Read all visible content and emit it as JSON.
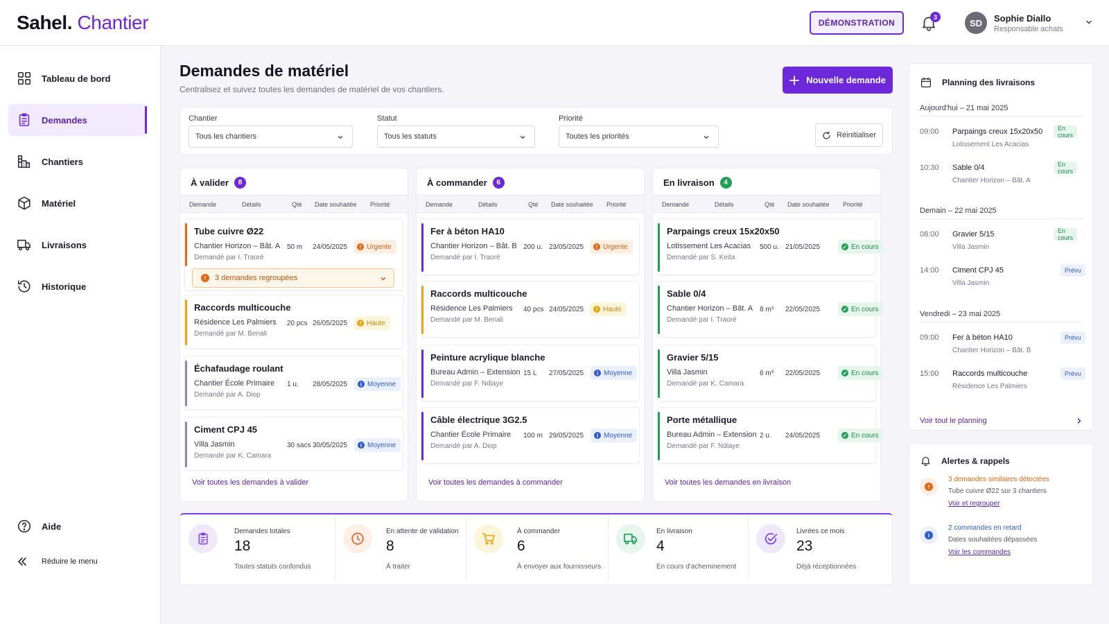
{
  "app": {
    "brand_main": "Sahel.",
    "brand_sub": "Chantier"
  },
  "topbar": {
    "demo_label": "DÉMONSTRATION",
    "notif_count": "3",
    "user_initials": "SD",
    "user_name": "Sophie Diallo",
    "user_role": "Responsable achats"
  },
  "sidebar": {
    "items": [
      {
        "label": "Tableau de bord",
        "icon": "grid-icon"
      },
      {
        "label": "Demandes",
        "icon": "clipboard-icon"
      },
      {
        "label": "Chantiers",
        "icon": "crane-icon"
      },
      {
        "label": "Matériel",
        "icon": "box-icon"
      },
      {
        "label": "Livraisons",
        "icon": "truck-icon"
      },
      {
        "label": "Historique",
        "icon": "history-icon"
      }
    ],
    "active": "Demandes",
    "help": "Aide",
    "collapse": "Réduire le menu"
  },
  "page": {
    "title": "Demandes de matériel",
    "subtitle": "Centralisez et suivez toutes les demandes de matériel de vos chantiers.",
    "new_button": "Nouvelle demande"
  },
  "filters": {
    "chantier": {
      "label": "Chantier",
      "value": "Tous les chantiers"
    },
    "statut": {
      "label": "Statut",
      "value": "Tous les statuts"
    },
    "priorite": {
      "label": "Priorité",
      "value": "Toutes les priorités"
    },
    "reset": "Réinitialiser"
  },
  "table_headers": {
    "demande": "Demande",
    "details": "Détails",
    "qte": "Qté",
    "date": "Date souhaitée",
    "priorite": "Priorité"
  },
  "columns": [
    {
      "title": "À valider",
      "count": "8",
      "count_color": "#6d28d9",
      "footer": "Voir toutes les demandes à valider",
      "cards": [
        {
          "title": "Tube cuivre Ø22",
          "site": "Chantier Horizon – Bât. A",
          "by": "Demandé par I. Traoré",
          "qty": "50 m",
          "date": "24/05/2025",
          "priority": "Urgente",
          "bar": "#e16a17"
        },
        {
          "title": "Raccords multicouche",
          "site": "Résidence Les Palmiers",
          "by": "Demandé par M. Benali",
          "qty": "20 pcs",
          "date": "26/05/2025",
          "priority": "Haute",
          "bar": "#e9a514"
        },
        {
          "title": "Échafaudage roulant",
          "site": "Chantier École Primaire",
          "by": "Demandé par A. Diop",
          "qty": "1 u.",
          "date": "28/05/2025",
          "priority": "Moyenne",
          "bar": "#8c8ca0"
        },
        {
          "title": "Ciment CPJ 45",
          "site": "Villa Jasmin",
          "by": "Demandé par K. Camara",
          "qty": "30 sacs",
          "date": "30/05/2025",
          "priority": "Moyenne",
          "bar": "#8c8ca0"
        }
      ],
      "group_label": "3 demandes regroupées"
    },
    {
      "title": "À commander",
      "count": "6",
      "count_color": "#6d28d9",
      "footer": "Voir toutes les demandes à commander",
      "cards": [
        {
          "title": "Fer à béton HA10",
          "site": "Chantier Horizon – Bât. B",
          "by": "Demandé par I. Traoré",
          "qty": "200 u.",
          "date": "23/05/2025",
          "priority": "Urgente",
          "bar": "#6d28d9"
        },
        {
          "title": "Raccords multicouche",
          "site": "Résidence Les Palmiers",
          "by": "Demandé par M. Benali",
          "qty": "40 pcs",
          "date": "24/05/2025",
          "priority": "Haute",
          "bar": "#e9a514"
        },
        {
          "title": "Peinture acrylique blanche",
          "site": "Bureau Admin – Extension",
          "by": "Demandé par F. Ndiaye",
          "qty": "15 L",
          "date": "27/05/2025",
          "priority": "Moyenne",
          "bar": "#6d28d9"
        },
        {
          "title": "Câble électrique 3G2.5",
          "site": "Chantier École Primaire",
          "by": "Demandé par A. Diop",
          "qty": "100 m",
          "date": "29/05/2025",
          "priority": "Moyenne",
          "bar": "#6d28d9"
        }
      ]
    },
    {
      "title": "En livraison",
      "count": "4",
      "count_color": "#22a055",
      "footer": "Voir toutes les demandes en livraison",
      "cards": [
        {
          "title": "Parpaings creux 15x20x50",
          "site": "Lotissement Les Acacias",
          "by": "Demandé par S. Keita",
          "qty": "500 u.",
          "date": "21/05/2025",
          "priority": "En cours",
          "bar": "#22a055"
        },
        {
          "title": "Sable 0/4",
          "site": "Chantier Horizon – Bât. A",
          "by": "Demandé par I. Traoré",
          "qty": "8 m³",
          "date": "22/05/2025",
          "priority": "En cours",
          "bar": "#22a055"
        },
        {
          "title": "Gravier 5/15",
          "site": "Villa Jasmin",
          "by": "Demandé par K. Camara",
          "qty": "6 m³",
          "date": "22/05/2025",
          "priority": "En cours",
          "bar": "#22a055"
        },
        {
          "title": "Porte métallique",
          "site": "Bureau Admin – Extension",
          "by": "Demandé par F. Ndiaye",
          "qty": "2 u.",
          "date": "24/05/2025",
          "priority": "En cours",
          "bar": "#22a055"
        }
      ]
    }
  ],
  "stats": [
    {
      "label": "Demandes totales",
      "value": "18",
      "sub": "Toutes statuts confondus",
      "icon": "clipboard-icon",
      "bg": "#efe8fb",
      "fg": "#7c3aed"
    },
    {
      "label": "En attente de validation",
      "value": "8",
      "sub": "À traiter",
      "icon": "clock-icon",
      "bg": "#fdeee6",
      "fg": "#e2612b"
    },
    {
      "label": "À commander",
      "value": "6",
      "sub": "À envoyer aux fournisseurs",
      "icon": "cart-icon",
      "bg": "#fdf4dc",
      "fg": "#e9a514"
    },
    {
      "label": "En livraison",
      "value": "4",
      "sub": "En cours d'acheminement",
      "icon": "truck-icon",
      "bg": "#e6f6ec",
      "fg": "#22a055"
    },
    {
      "label": "Livrées ce mois",
      "value": "23",
      "sub": "Déjà réceptionnées",
      "icon": "check-circle-icon",
      "bg": "#efe8fb",
      "fg": "#7c3aed"
    }
  ],
  "planning": {
    "title": "Planning des livraisons",
    "days": [
      {
        "label": "Aujourd'hui – 21 mai 2025",
        "events": [
          {
            "time": "09:00",
            "name": "Parpaings creux 15x20x50",
            "place": "Lotissement Les Acacias",
            "status": "En cours"
          },
          {
            "time": "10:30",
            "name": "Sable 0/4",
            "place": "Chantier Horizon – Bât. A",
            "status": "En cours"
          }
        ]
      },
      {
        "label": "Demain – 22 mai 2025",
        "events": [
          {
            "time": "08:00",
            "name": "Gravier 5/15",
            "place": "Villa Jasmin",
            "status": "En cours"
          },
          {
            "time": "14:00",
            "name": "Ciment CPJ 45",
            "place": "Villa Jasmin",
            "status": "Prévu"
          }
        ]
      },
      {
        "label": "Vendredi – 23 mai 2025",
        "events": [
          {
            "time": "09:00",
            "name": "Fer à béton HA10",
            "place": "Chantier Horizon – Bât. B",
            "status": "Prévu"
          },
          {
            "time": "15:00",
            "name": "Raccords multicouche",
            "place": "Résidence Les Palmiers",
            "status": "Prévu"
          }
        ]
      }
    ],
    "footer": "Voir tout le planning"
  },
  "alerts": {
    "title": "Alertes & rappels",
    "items": [
      {
        "headline": "3 demandes similaires détectées",
        "detail": "Tube cuivre Ø22 sur 3 chantiers",
        "link": "Voir et regrouper",
        "color": "#e16a17"
      },
      {
        "headline": "2 commandes en retard",
        "detail": "Dates souhaitées dépassées",
        "link": "Voir les commandes",
        "color": "#2f5bd2"
      }
    ]
  }
}
